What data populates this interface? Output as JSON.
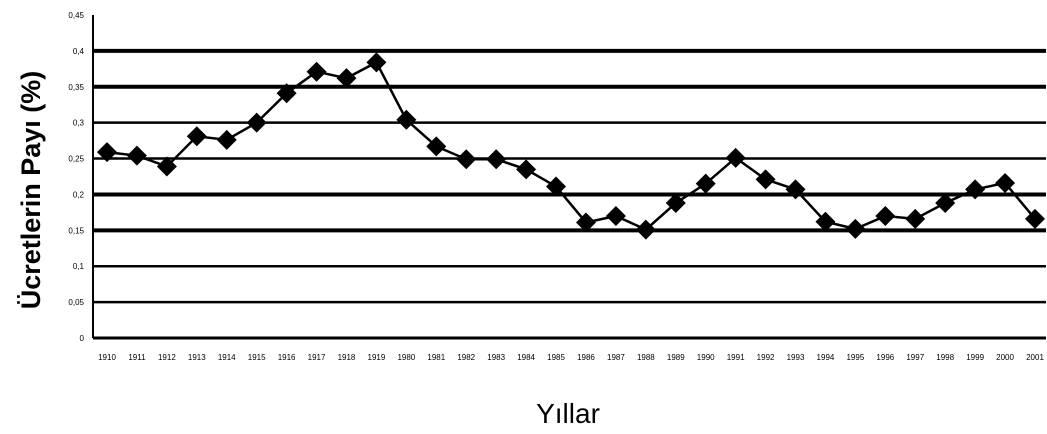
{
  "chart_data": {
    "type": "line",
    "xlabel": "Yıllar",
    "ylabel": "Ücretlerin Payı (%)",
    "ylim": [
      0,
      0.45
    ],
    "yticks": [
      "0",
      "0,05",
      "0,1",
      "0,15",
      "0,2",
      "0,25",
      "0,3",
      "0,35",
      "0,4",
      "0,45"
    ],
    "categories": [
      "1910",
      "1911",
      "1912",
      "1913",
      "1914",
      "1915",
      "1916",
      "1917",
      "1918",
      "1919",
      "1980",
      "1981",
      "1982",
      "1983",
      "1984",
      "1985",
      "1986",
      "1987",
      "1988",
      "1989",
      "1990",
      "1991",
      "1992",
      "1993",
      "1994",
      "1995",
      "1996",
      "1997",
      "1998",
      "1999",
      "2000",
      "2001"
    ],
    "series": [
      {
        "values": [
          0.259,
          0.254,
          0.239,
          0.281,
          0.276,
          0.3,
          0.341,
          0.371,
          0.362,
          0.384,
          0.304,
          0.267,
          0.249,
          0.249,
          0.235,
          0.211,
          0.161,
          0.17,
          0.151,
          0.188,
          0.215,
          0.251,
          0.221,
          0.207,
          0.162,
          0.152,
          0.17,
          0.166,
          0.188,
          0.207,
          0.216,
          0.166
        ]
      }
    ],
    "grid": true,
    "line_color": "#000000",
    "marker": "diamond"
  }
}
